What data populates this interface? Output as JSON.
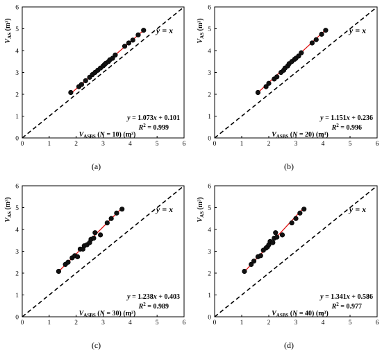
{
  "chart_data": [
    {
      "type": "scatter",
      "panel_label": "(a)",
      "xlabel": "V_ASBS (N = 10) (m³)",
      "ylabel": "V_AS (m³)",
      "xlim": [
        0,
        6
      ],
      "ylim": [
        0,
        6
      ],
      "xticks": [
        "0",
        "1",
        "2",
        "3",
        "4",
        "5",
        "6"
      ],
      "yticks": [
        "0",
        "1",
        "2",
        "3",
        "4",
        "5",
        "6"
      ],
      "identity_label": "y = x",
      "fit": {
        "slope": 1.073,
        "intercept": 0.101,
        "equation": "y = 1.073x + 0.101",
        "r2": "R² = 0.999",
        "x_range": [
          1.8,
          4.5
        ]
      },
      "points": [
        [
          1.8,
          2.08
        ],
        [
          2.1,
          2.35
        ],
        [
          2.2,
          2.45
        ],
        [
          2.35,
          2.62
        ],
        [
          2.5,
          2.78
        ],
        [
          2.6,
          2.9
        ],
        [
          2.7,
          3.0
        ],
        [
          2.8,
          3.1
        ],
        [
          2.9,
          3.2
        ],
        [
          3.0,
          3.3
        ],
        [
          3.05,
          3.36
        ],
        [
          3.1,
          3.42
        ],
        [
          3.2,
          3.5
        ],
        [
          3.25,
          3.58
        ],
        [
          3.35,
          3.65
        ],
        [
          3.45,
          3.8
        ],
        [
          3.8,
          4.2
        ],
        [
          3.95,
          4.35
        ],
        [
          4.1,
          4.48
        ],
        [
          4.3,
          4.72
        ],
        [
          4.5,
          4.93
        ]
      ]
    },
    {
      "type": "scatter",
      "panel_label": "(b)",
      "xlabel": "V_ASBS (N = 20) (m³)",
      "ylabel": "V_AS (m³)",
      "xlim": [
        0,
        6
      ],
      "ylim": [
        0,
        6
      ],
      "xticks": [
        "0",
        "1",
        "2",
        "3",
        "4",
        "5",
        "6"
      ],
      "yticks": [
        "0",
        "1",
        "2",
        "3",
        "4",
        "5",
        "6"
      ],
      "identity_label": "y = x",
      "fit": {
        "slope": 1.151,
        "intercept": 0.236,
        "equation": "y = 1.151x + 0.236",
        "r2": "R² = 0.996",
        "x_range": [
          1.6,
          4.1
        ]
      },
      "points": [
        [
          1.6,
          2.08
        ],
        [
          1.9,
          2.35
        ],
        [
          2.0,
          2.5
        ],
        [
          2.2,
          2.7
        ],
        [
          2.3,
          2.8
        ],
        [
          2.45,
          3.0
        ],
        [
          2.55,
          3.1
        ],
        [
          2.6,
          3.2
        ],
        [
          2.7,
          3.3
        ],
        [
          2.75,
          3.4
        ],
        [
          2.85,
          3.5
        ],
        [
          2.95,
          3.6
        ],
        [
          3.0,
          3.65
        ],
        [
          3.1,
          3.75
        ],
        [
          3.2,
          3.9
        ],
        [
          3.6,
          4.35
        ],
        [
          3.75,
          4.5
        ],
        [
          3.95,
          4.75
        ],
        [
          4.1,
          4.93
        ]
      ]
    },
    {
      "type": "scatter",
      "panel_label": "(c)",
      "xlabel": "V_ASBS (N = 30) (m³)",
      "ylabel": "V_AS (m³)",
      "xlim": [
        0,
        6
      ],
      "ylim": [
        0,
        6
      ],
      "xticks": [
        "0",
        "1",
        "2",
        "3",
        "4",
        "5",
        "6"
      ],
      "yticks": [
        "0",
        "1",
        "2",
        "3",
        "4",
        "5",
        "6"
      ],
      "identity_label": "y = x",
      "fit": {
        "slope": 1.238,
        "intercept": 0.403,
        "equation": "y = 1.238x + 0.403",
        "r2": "R² = 0.989",
        "x_range": [
          1.35,
          3.7
        ]
      },
      "points": [
        [
          1.35,
          2.08
        ],
        [
          1.6,
          2.4
        ],
        [
          1.7,
          2.5
        ],
        [
          1.85,
          2.7
        ],
        [
          1.95,
          2.8
        ],
        [
          2.05,
          2.75
        ],
        [
          2.15,
          3.1
        ],
        [
          2.25,
          3.1
        ],
        [
          2.3,
          3.25
        ],
        [
          2.4,
          3.3
        ],
        [
          2.5,
          3.4
        ],
        [
          2.55,
          3.55
        ],
        [
          2.65,
          3.6
        ],
        [
          2.7,
          3.85
        ],
        [
          2.9,
          3.75
        ],
        [
          3.15,
          4.3
        ],
        [
          3.3,
          4.5
        ],
        [
          3.5,
          4.75
        ],
        [
          3.7,
          4.93
        ]
      ]
    },
    {
      "type": "scatter",
      "panel_label": "(d)",
      "xlabel": "V_ASBS (N = 40) (m³)",
      "ylabel": "V_AS (m³)",
      "xlim": [
        0,
        6
      ],
      "ylim": [
        0,
        6
      ],
      "xticks": [
        "0",
        "1",
        "2",
        "3",
        "4",
        "5",
        "6"
      ],
      "yticks": [
        "0",
        "1",
        "2",
        "3",
        "4",
        "5",
        "6"
      ],
      "identity_label": "y = x",
      "fit": {
        "slope": 1.341,
        "intercept": 0.586,
        "equation": "y = 1.341x + 0.586",
        "r2": "R² = 0.977",
        "x_range": [
          1.1,
          3.3
        ]
      },
      "points": [
        [
          1.1,
          2.08
        ],
        [
          1.35,
          2.4
        ],
        [
          1.45,
          2.55
        ],
        [
          1.6,
          2.75
        ],
        [
          1.7,
          2.8
        ],
        [
          1.8,
          3.05
        ],
        [
          1.9,
          3.15
        ],
        [
          1.95,
          3.2
        ],
        [
          2.0,
          3.3
        ],
        [
          2.05,
          3.45
        ],
        [
          2.15,
          3.4
        ],
        [
          2.2,
          3.6
        ],
        [
          2.3,
          3.65
        ],
        [
          2.25,
          3.85
        ],
        [
          2.5,
          3.75
        ],
        [
          2.85,
          4.3
        ],
        [
          3.0,
          4.5
        ],
        [
          3.15,
          4.75
        ],
        [
          3.3,
          4.93
        ]
      ]
    }
  ]
}
